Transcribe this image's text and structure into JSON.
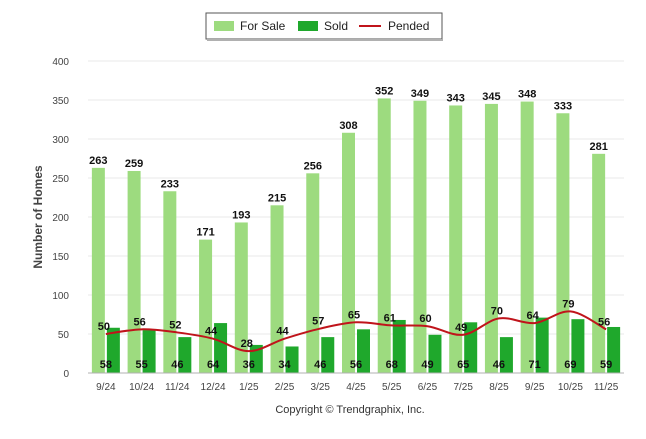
{
  "chart_data": {
    "type": "bar",
    "title": "",
    "xlabel": "",
    "ylabel": "Number of Homes",
    "ylim": [
      0,
      400
    ],
    "yticks": [
      0,
      50,
      100,
      150,
      200,
      250,
      300,
      350,
      400
    ],
    "grid": true,
    "legend_position": "top-center",
    "categories": [
      "9/24",
      "10/24",
      "11/24",
      "12/24",
      "1/25",
      "2/25",
      "3/25",
      "4/25",
      "5/25",
      "6/25",
      "7/25",
      "8/25",
      "9/25",
      "10/25",
      "11/25"
    ],
    "series": [
      {
        "name": "For Sale",
        "type": "bar",
        "color": "#9ddb7f",
        "values": [
          263,
          259,
          233,
          171,
          193,
          215,
          256,
          308,
          352,
          349,
          343,
          345,
          348,
          333,
          281
        ]
      },
      {
        "name": "Sold",
        "type": "bar",
        "color": "#1fa82c",
        "values": [
          58,
          55,
          46,
          64,
          36,
          34,
          46,
          56,
          68,
          49,
          65,
          46,
          71,
          69,
          59
        ]
      },
      {
        "name": "Pended",
        "type": "line",
        "color": "#c0141b",
        "values": [
          50,
          56,
          52,
          44,
          28,
          44,
          57,
          65,
          61,
          60,
          49,
          70,
          64,
          79,
          56
        ]
      }
    ]
  },
  "credit": "Copyright © Trendgraphix, Inc."
}
